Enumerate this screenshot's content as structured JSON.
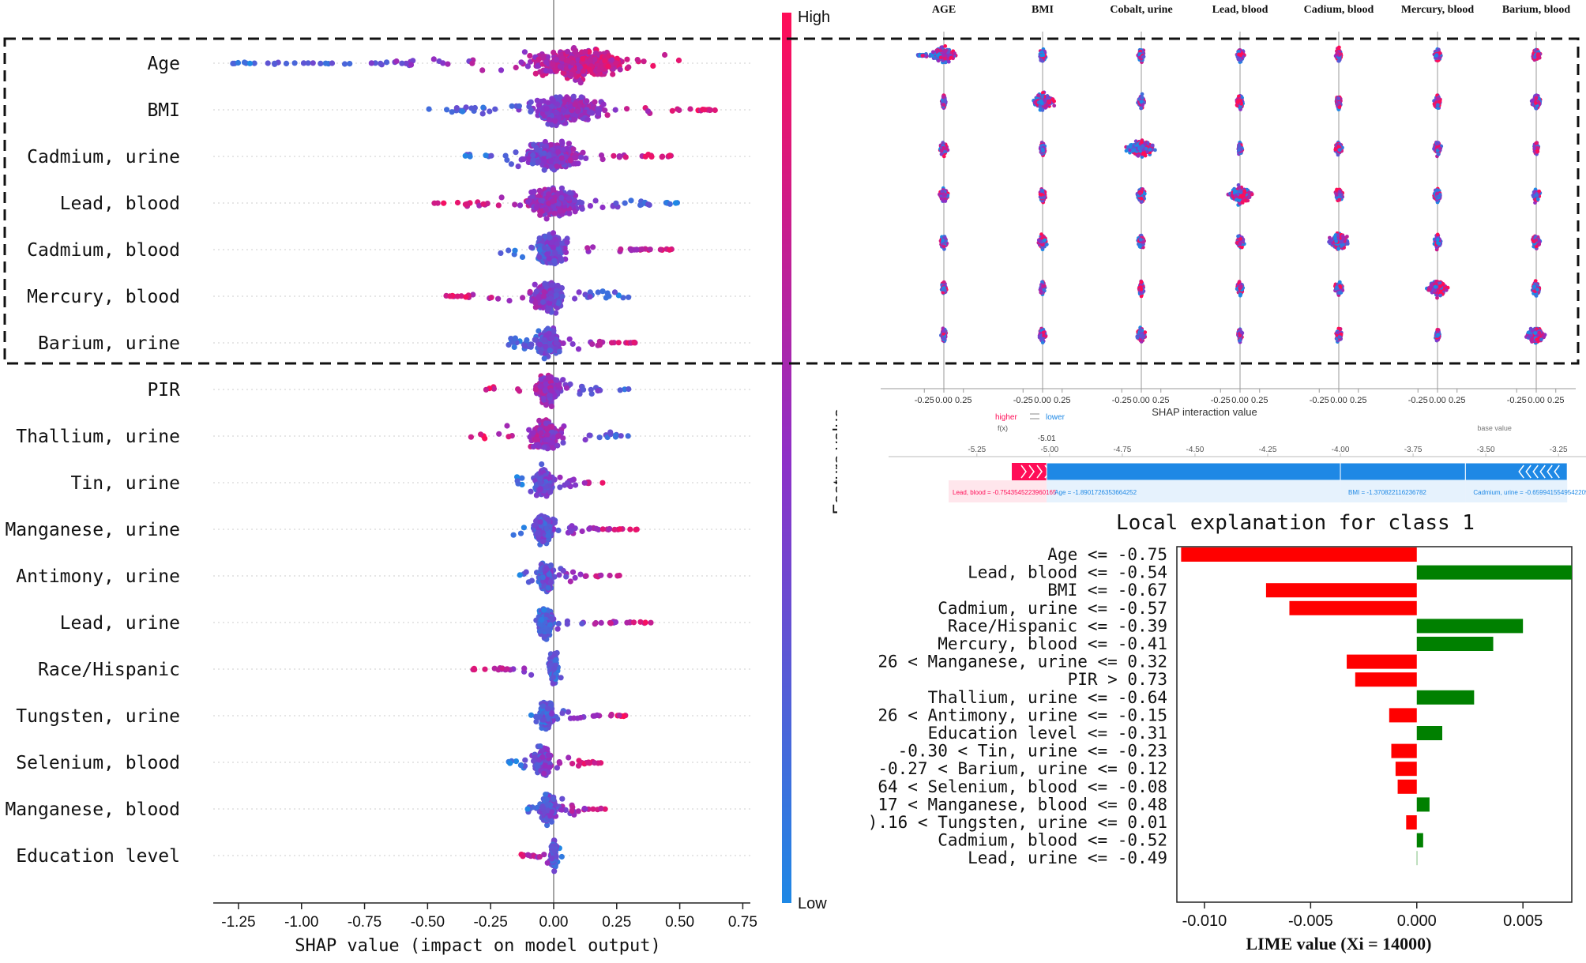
{
  "chart_data": [
    {
      "type": "scatter",
      "subtype": "shap-beeswarm",
      "xlabel": "SHAP value (impact on model output)",
      "xlim": [
        -1.35,
        0.78
      ],
      "xticks": [
        -1.25,
        -1.0,
        -0.75,
        -0.5,
        -0.25,
        0.0,
        0.25,
        0.5,
        0.75
      ],
      "xtick_labels": [
        "-1.25",
        "-1.00",
        "-0.75",
        "-0.50",
        "-0.25",
        "0.00",
        "0.25",
        "0.50",
        "0.75"
      ],
      "colorbar": {
        "label": "Feature value",
        "high_label": "High",
        "low_label": "Low",
        "high_color": "#ff0d57",
        "low_color": "#1e88e5"
      },
      "highlight_box": "top 7 features (dashed)",
      "features": [
        {
          "name": "Age",
          "min": -1.3,
          "max": 0.5,
          "center": 0.1,
          "spread": 0.34,
          "high_side": "right"
        },
        {
          "name": "BMI",
          "min": -0.5,
          "max": 0.66,
          "center": 0.05,
          "spread": 0.26,
          "high_side": "right"
        },
        {
          "name": "Cadmium, urine",
          "min": -0.4,
          "max": 0.48,
          "center": 0.0,
          "spread": 0.2,
          "high_side": "right"
        },
        {
          "name": "Lead, blood",
          "min": -0.48,
          "max": 0.5,
          "center": 0.0,
          "spread": 0.18,
          "high_side": "left"
        },
        {
          "name": "Cadmium, blood",
          "min": -0.22,
          "max": 0.47,
          "center": -0.01,
          "spread": 0.12,
          "high_side": "right"
        },
        {
          "name": "Mercury, blood",
          "min": -0.45,
          "max": 0.3,
          "center": -0.02,
          "spread": 0.12,
          "high_side": "left"
        },
        {
          "name": "Barium, urine",
          "min": -0.18,
          "max": 0.35,
          "center": -0.02,
          "spread": 0.09,
          "high_side": "right"
        },
        {
          "name": "PIR",
          "min": -0.27,
          "max": 0.3,
          "center": -0.02,
          "spread": 0.09,
          "high_side": "left"
        },
        {
          "name": "Thallium, urine",
          "min": -0.33,
          "max": 0.36,
          "center": -0.03,
          "spread": 0.1,
          "high_side": "left"
        },
        {
          "name": "Tin, urine",
          "min": -0.15,
          "max": 0.21,
          "center": -0.04,
          "spread": 0.07,
          "high_side": "right"
        },
        {
          "name": "Manganese, urine",
          "min": -0.17,
          "max": 0.33,
          "center": -0.04,
          "spread": 0.07,
          "high_side": "right"
        },
        {
          "name": "Antimony, urine",
          "min": -0.14,
          "max": 0.27,
          "center": -0.03,
          "spread": 0.05,
          "high_side": "right"
        },
        {
          "name": "Lead, urine",
          "min": -0.12,
          "max": 0.41,
          "center": -0.03,
          "spread": 0.05,
          "high_side": "right"
        },
        {
          "name": "Race/Hispanic",
          "min": -0.34,
          "max": 0.06,
          "center": 0.0,
          "spread": 0.03,
          "high_side": "left"
        },
        {
          "name": "Tungsten, urine",
          "min": -0.1,
          "max": 0.29,
          "center": -0.03,
          "spread": 0.05,
          "high_side": "right"
        },
        {
          "name": "Selenium, blood",
          "min": -0.18,
          "max": 0.19,
          "center": -0.04,
          "spread": 0.05,
          "high_side": "right"
        },
        {
          "name": "Manganese, blood",
          "min": -0.12,
          "max": 0.22,
          "center": -0.02,
          "spread": 0.05,
          "high_side": "right"
        },
        {
          "name": "Education level",
          "min": -0.13,
          "max": 0.04,
          "center": 0.0,
          "spread": 0.02,
          "high_side": "left"
        }
      ]
    },
    {
      "type": "scatter",
      "subtype": "shap-interaction-grid",
      "columns": [
        "AGE",
        "BMI",
        "Cobalt, urine",
        "Lead, blood",
        "Cadium, blood",
        "Mercury, blood",
        "Barium, blood"
      ],
      "rows": 7,
      "xticks": [
        -0.25,
        0.0,
        0.25
      ],
      "xtick_labels": [
        "-0.25",
        "0.00",
        "0.25"
      ],
      "xlabel": "SHAP interaction value",
      "main_effect_spread": [
        0.22,
        0.19,
        0.22,
        0.2,
        0.17,
        0.16,
        0.15
      ]
    },
    {
      "type": "bar",
      "subtype": "shap-force-plot",
      "legend_higher": "higher",
      "legend_lower": "lower",
      "fx_label": "f(x)",
      "fx_value": "-5.01",
      "base_label": "base value",
      "xticks": [
        -5.25,
        -5.0,
        -4.75,
        -4.5,
        -4.25,
        -4.0,
        -3.75,
        -3.5,
        -3.25
      ],
      "xtick_labels": [
        "-5.25",
        "-5.00",
        "-4.75",
        "-4.50",
        "-4.25",
        "-4.00",
        "-3.75",
        "-3.50",
        "-3.25"
      ],
      "push_higher": [
        {
          "label": "Lead, blood = -0.7543545223960165",
          "from": -5.13,
          "to": -5.01
        }
      ],
      "push_lower": [
        {
          "label": "Age = -1.8901726353664252",
          "from": -5.01,
          "to": -4.0
        },
        {
          "label": "BMI = -1.370822116236782",
          "from": -4.0,
          "to": -3.57
        },
        {
          "label": "Cadmium, urine = -0.6599415549542209",
          "from": -3.57,
          "to": -3.22
        }
      ]
    },
    {
      "type": "bar",
      "subtype": "lime-horizontal",
      "title": "Local explanation for class 1",
      "xlabel": "LIME value (Xi = 14000)",
      "xlim": [
        -0.0113,
        0.0073
      ],
      "xticks": [
        -0.01,
        -0.005,
        0.0,
        0.005
      ],
      "xtick_labels": [
        "-0.010",
        "-0.005",
        "0.000",
        "0.005"
      ],
      "colors": {
        "negative": "#ff0000",
        "positive": "#008000"
      },
      "categories": [
        "Age <= -0.75",
        "Lead, blood <= -0.54",
        "BMI <= -0.67",
        "Cadmium, urine <= -0.57",
        "Race/Hispanic <= -0.39",
        "Mercury, blood <= -0.41",
        "26 < Manganese, urine <= 0.32",
        "PIR > 0.73",
        "Thallium, urine <= -0.64",
        "26 < Antimony, urine <= -0.15",
        "Education level <= -0.31",
        "-0.30 < Tin, urine <= -0.23",
        "-0.27 < Barium, urine <= 0.12",
        "64 < Selenium, blood <= -0.08",
        "17 < Manganese, blood <= 0.48",
        ").16 < Tungsten, urine <= 0.01",
        "Cadmium, blood <= -0.52",
        "Lead, urine <= -0.49"
      ],
      "values": [
        -0.0111,
        0.0073,
        -0.0071,
        -0.006,
        0.005,
        0.0036,
        -0.0033,
        -0.0029,
        0.0027,
        -0.0013,
        0.0012,
        -0.0012,
        -0.001,
        -0.0009,
        0.0006,
        -0.0005,
        0.0003,
        0.0
      ]
    }
  ]
}
